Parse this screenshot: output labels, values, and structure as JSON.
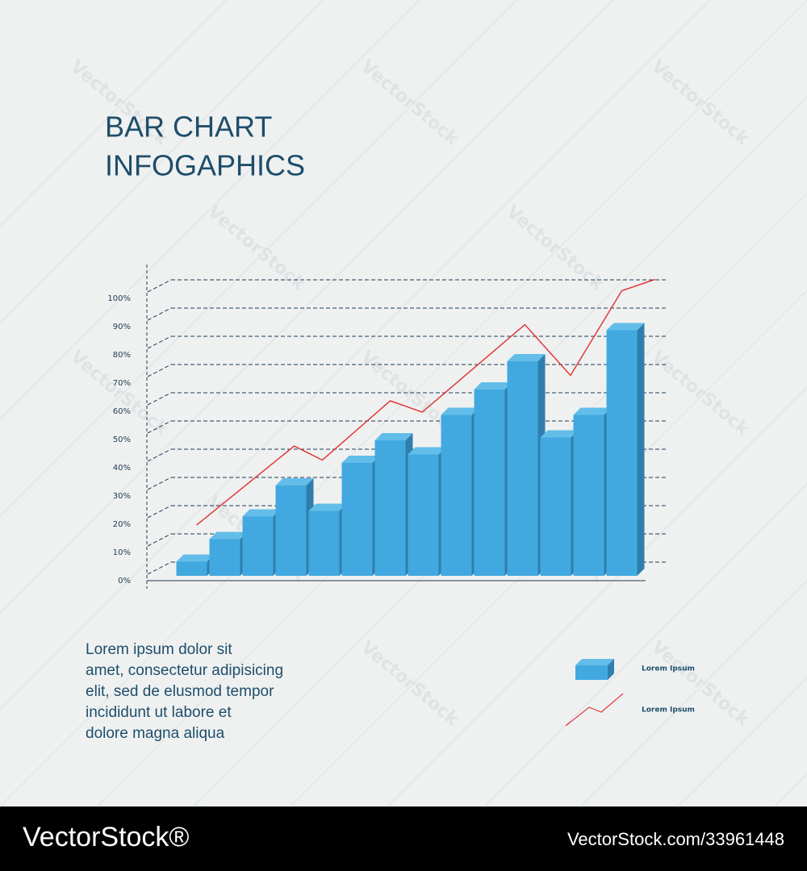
{
  "chart_data": {
    "type": "bar",
    "title": [
      "BAR CHART",
      "INFOGAPHICS"
    ],
    "categories": [
      null,
      null,
      null,
      null,
      null,
      null,
      null,
      null,
      null,
      null,
      null,
      null,
      null,
      null
    ],
    "series": [
      {
        "name": "Lorem Ipsum",
        "type": "bar",
        "color": "#41a9e0",
        "values": [
          5,
          13,
          21,
          32,
          23,
          40,
          48,
          43,
          57,
          66,
          76,
          49,
          57,
          87
        ]
      },
      {
        "name": "Lorem Ipsum",
        "type": "line",
        "color": "#e03a3a",
        "x": [
          0.15,
          3.1,
          3.95,
          6.0,
          6.97,
          10.07,
          11.45,
          13.0,
          14.0
        ],
        "values": [
          18,
          46,
          41,
          62,
          58,
          89,
          71,
          101,
          105
        ]
      }
    ],
    "ylim": [
      0,
      110
    ],
    "yticks": [
      {
        "value": 0,
        "label": "0%"
      },
      {
        "value": 10,
        "label": "10%"
      },
      {
        "value": 20,
        "label": "20%"
      },
      {
        "value": 30,
        "label": "30%"
      },
      {
        "value": 40,
        "label": "40%"
      },
      {
        "value": 50,
        "label": "50%"
      },
      {
        "value": 60,
        "label": "60%"
      },
      {
        "value": 70,
        "label": "70%"
      },
      {
        "value": 80,
        "label": "80%"
      },
      {
        "value": 90,
        "label": "90%"
      },
      {
        "value": 100,
        "label": "100%"
      }
    ],
    "grid": true
  },
  "description": [
    "Lorem ipsum dolor sit",
    "amet, consectetur adipisicing",
    "elit, sed de elusmod tempor",
    "incididunt ut labore et",
    "dolore magna aliqua"
  ],
  "watermark": "VectorStock",
  "footer": {
    "brand": "VectorStock®",
    "id": "VectorStock.com/33961448"
  }
}
